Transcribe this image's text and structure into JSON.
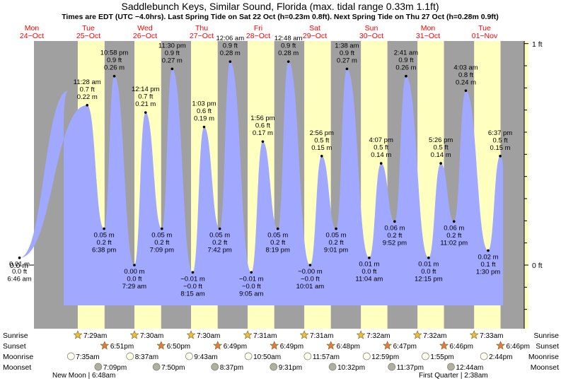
{
  "header": {
    "title": "Saddlebunch Keys, Similar Sound, Florida (max. tidal range 0.33m 1.1ft)",
    "subtitle": "Times are EDT (UTC −4.0hrs). Last Spring Tide on Sat 22 Oct (h=0.23m 0.8ft). Next Spring Tide on Thu 27 Oct (h=0.28m 0.9ft)"
  },
  "colors": {
    "night": "#a0a0a0",
    "day": "#ffffc0",
    "water": "#a0a8ff",
    "day_label": "#ff0000",
    "sun_star": "#e8c040",
    "sunset_star": "#d88040",
    "moonrise": "#fffff0",
    "moonset": "#b0b0a0"
  },
  "days": [
    {
      "dow": "Mon",
      "date": "24−Oct"
    },
    {
      "dow": "Tue",
      "date": "25−Oct"
    },
    {
      "dow": "Wed",
      "date": "26−Oct"
    },
    {
      "dow": "Thu",
      "date": "27−Oct"
    },
    {
      "dow": "Fri",
      "date": "28−Oct"
    },
    {
      "dow": "Sat",
      "date": "29−Oct"
    },
    {
      "dow": "Sun",
      "date": "30−Oct"
    },
    {
      "dow": "Mon",
      "date": "31−Oct"
    },
    {
      "dow": "Tue",
      "date": "01−Nov"
    }
  ],
  "chart_data": {
    "type": "area",
    "y_unit_left": "m",
    "y_unit_right": "ft",
    "y_left_label": "0.0 m",
    "y_right_labels": [
      "1 ft",
      "0 ft"
    ],
    "tides": [
      {
        "day": 0,
        "time": "6:46 am",
        "m": "0.01 m",
        "ft": "0.0 ft",
        "value": 0.01,
        "type": "low"
      },
      {
        "day": 1,
        "time": "11:28 am",
        "m": "0.22 m",
        "ft": "0.7 ft",
        "value": 0.22,
        "type": "high"
      },
      {
        "day": 1,
        "time": "6:38 pm",
        "m": "0.05 m",
        "ft": "0.2 ft",
        "value": 0.05,
        "type": "low"
      },
      {
        "day": 1,
        "time": "10:58 pm",
        "m": "0.26 m",
        "ft": "0.9 ft",
        "value": 0.26,
        "type": "high"
      },
      {
        "day": 2,
        "time": "7:29 am",
        "m": "0.00 m",
        "ft": "0.0 ft",
        "value": 0.0,
        "type": "low"
      },
      {
        "day": 2,
        "time": "12:14 pm",
        "m": "0.21 m",
        "ft": "0.7 ft",
        "value": 0.21,
        "type": "high"
      },
      {
        "day": 2,
        "time": "7:09 pm",
        "m": "0.05 m",
        "ft": "0.2 ft",
        "value": 0.05,
        "type": "low"
      },
      {
        "day": 2,
        "time": "11:30 pm",
        "m": "0.27 m",
        "ft": "0.9 ft",
        "value": 0.27,
        "type": "high"
      },
      {
        "day": 3,
        "time": "8:15 am",
        "m": "−0.01 m",
        "ft": "−0.0 ft",
        "value": -0.01,
        "type": "low"
      },
      {
        "day": 3,
        "time": "1:03 pm",
        "m": "0.19 m",
        "ft": "0.6 ft",
        "value": 0.19,
        "type": "high"
      },
      {
        "day": 3,
        "time": "7:42 pm",
        "m": "0.05 m",
        "ft": "0.2 ft",
        "value": 0.05,
        "type": "low"
      },
      {
        "day": 4,
        "time": "12:06 am",
        "m": "0.28 m",
        "ft": "0.9 ft",
        "value": 0.28,
        "type": "high"
      },
      {
        "day": 4,
        "time": "9:05 am",
        "m": "−0.01 m",
        "ft": "−0.0 ft",
        "value": -0.01,
        "type": "low"
      },
      {
        "day": 4,
        "time": "1:56 pm",
        "m": "0.17 m",
        "ft": "0.6 ft",
        "value": 0.17,
        "type": "high"
      },
      {
        "day": 4,
        "time": "8:19 pm",
        "m": "0.05 m",
        "ft": "0.2 ft",
        "value": 0.05,
        "type": "low"
      },
      {
        "day": 5,
        "time": "12:48 am",
        "m": "0.28 m",
        "ft": "0.9 ft",
        "value": 0.28,
        "type": "high"
      },
      {
        "day": 5,
        "time": "10:01 am",
        "m": "−0.00 m",
        "ft": "−0.0 ft",
        "value": 0.0,
        "type": "low"
      },
      {
        "day": 5,
        "time": "2:56 pm",
        "m": "0.15 m",
        "ft": "0.5 ft",
        "value": 0.15,
        "type": "high"
      },
      {
        "day": 5,
        "time": "9:01 pm",
        "m": "0.05 m",
        "ft": "0.2 ft",
        "value": 0.05,
        "type": "low"
      },
      {
        "day": 6,
        "time": "1:38 am",
        "m": "0.27 m",
        "ft": "0.9 ft",
        "value": 0.27,
        "type": "high"
      },
      {
        "day": 6,
        "time": "11:04 am",
        "m": "0.01 m",
        "ft": "0.0 ft",
        "value": 0.01,
        "type": "low"
      },
      {
        "day": 6,
        "time": "4:07 pm",
        "m": "0.14 m",
        "ft": "0.5 ft",
        "value": 0.14,
        "type": "high"
      },
      {
        "day": 6,
        "time": "9:52 pm",
        "m": "0.06 m",
        "ft": "0.2 ft",
        "value": 0.06,
        "type": "low"
      },
      {
        "day": 7,
        "time": "2:41 am",
        "m": "0.26 m",
        "ft": "0.9 ft",
        "value": 0.26,
        "type": "high"
      },
      {
        "day": 7,
        "time": "12:15 pm",
        "m": "0.01 m",
        "ft": "0.0 ft",
        "value": 0.01,
        "type": "low"
      },
      {
        "day": 7,
        "time": "5:26 pm",
        "m": "0.14 m",
        "ft": "0.5 ft",
        "value": 0.14,
        "type": "high"
      },
      {
        "day": 7,
        "time": "11:02 pm",
        "m": "0.06 m",
        "ft": "0.2 ft",
        "value": 0.06,
        "type": "low"
      },
      {
        "day": 8,
        "time": "4:03 am",
        "m": "0.24 m",
        "ft": "0.8 ft",
        "value": 0.24,
        "type": "high"
      },
      {
        "day": 8,
        "time": "1:30 pm",
        "m": "0.02 m",
        "ft": "0.1 ft",
        "value": 0.02,
        "type": "low"
      },
      {
        "day": 8,
        "time": "6:37 pm",
        "m": "0.15 m",
        "ft": "0.5 ft",
        "value": 0.15,
        "type": "high"
      }
    ]
  },
  "almanac": {
    "row_labels": [
      "Sunrise",
      "Sunset",
      "Moonrise",
      "Moonset"
    ],
    "sunrise": [
      {
        "day": 1,
        "time": "7:29am"
      },
      {
        "day": 2,
        "time": "7:30am"
      },
      {
        "day": 3,
        "time": "7:30am"
      },
      {
        "day": 4,
        "time": "7:31am"
      },
      {
        "day": 5,
        "time": "7:31am"
      },
      {
        "day": 6,
        "time": "7:32am"
      },
      {
        "day": 7,
        "time": "7:32am"
      },
      {
        "day": 8,
        "time": "7:33am"
      }
    ],
    "sunset": [
      {
        "day": 1,
        "time": "6:51pm"
      },
      {
        "day": 2,
        "time": "6:50pm"
      },
      {
        "day": 3,
        "time": "6:49pm"
      },
      {
        "day": 4,
        "time": "6:49pm"
      },
      {
        "day": 5,
        "time": "6:48pm"
      },
      {
        "day": 6,
        "time": "6:47pm"
      },
      {
        "day": 7,
        "time": "6:46pm"
      },
      {
        "day": 8,
        "time": "6:46pm"
      }
    ],
    "moonrise": [
      {
        "day": 1,
        "time": "7:35am"
      },
      {
        "day": 2,
        "time": "8:37am"
      },
      {
        "day": 3,
        "time": "9:43am"
      },
      {
        "day": 4,
        "time": "10:50am"
      },
      {
        "day": 5,
        "time": "11:57am"
      },
      {
        "day": 6,
        "time": "12:59pm"
      },
      {
        "day": 7,
        "time": "1:55pm"
      },
      {
        "day": 8,
        "time": "2:44pm"
      }
    ],
    "moonset": [
      {
        "day": 1,
        "time": "7:09pm"
      },
      {
        "day": 2,
        "time": "7:50pm"
      },
      {
        "day": 3,
        "time": "8:37pm"
      },
      {
        "day": 4,
        "time": "9:31pm"
      },
      {
        "day": 5,
        "time": "10:32pm"
      },
      {
        "day": 6,
        "time": "11:37pm"
      },
      {
        "day": 8,
        "time": "12:44am"
      }
    ],
    "moon_phases": [
      {
        "text": "New Moon | 6:48am"
      },
      {
        "text": "First Quarter | 2:38am"
      }
    ]
  }
}
